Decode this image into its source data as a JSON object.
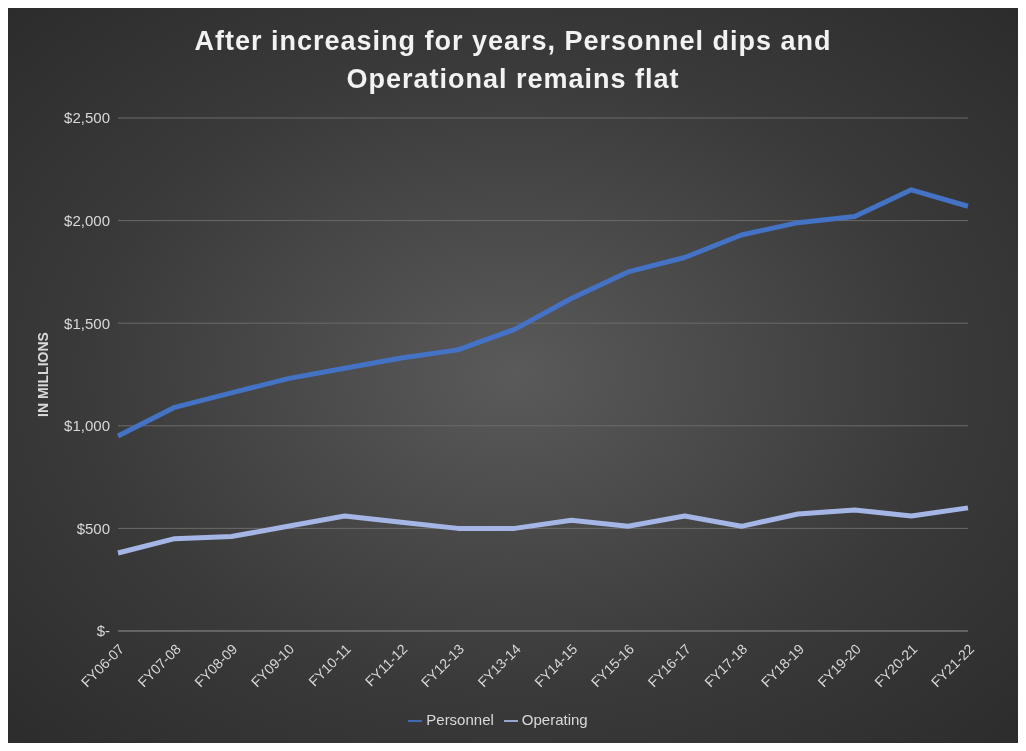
{
  "chart_data": {
    "type": "line",
    "title": "After increasing for years, Personnel dips and Operational remains flat",
    "ylabel": "IN MILLIONS",
    "categories": [
      "FY06-07",
      "FY07-08",
      "FY08-09",
      "FY09-10",
      "FY10-11",
      "FY11-12",
      "FY12-13",
      "FY13-14",
      "FY14-15",
      "FY15-16",
      "FY16-17",
      "FY17-18",
      "FY18-19",
      "FY19-20",
      "FY20-21",
      "FY21-22"
    ],
    "series": [
      {
        "name": "Personnel",
        "color": "#4472c4",
        "values": [
          950,
          1090,
          1160,
          1230,
          1280,
          1330,
          1370,
          1470,
          1620,
          1750,
          1820,
          1930,
          1990,
          2020,
          2150,
          2070
        ]
      },
      {
        "name": "Operating",
        "color": "#a5b6e6",
        "values": [
          380,
          450,
          460,
          510,
          560,
          530,
          500,
          500,
          540,
          510,
          560,
          510,
          570,
          590,
          560,
          600
        ]
      }
    ],
    "ylim": [
      0,
      2500
    ],
    "yticks": [
      {
        "value": 0,
        "label": "$-"
      },
      {
        "value": 500,
        "label": "$500"
      },
      {
        "value": 1000,
        "label": "$1,000"
      },
      {
        "value": 1500,
        "label": "$1,500"
      },
      {
        "value": 2000,
        "label": "$2,000"
      },
      {
        "value": 2500,
        "label": "$2,500"
      }
    ],
    "grid": "y",
    "legend": "bottom",
    "marker": "none",
    "line_style": "solid"
  }
}
